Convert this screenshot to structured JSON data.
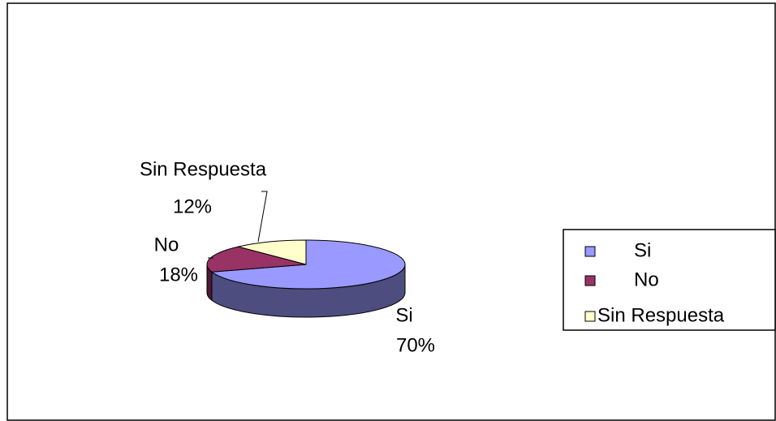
{
  "chart_data": {
    "type": "pie",
    "categories": [
      "Si",
      "No",
      "Sin Respuesta"
    ],
    "values": [
      70,
      18,
      12
    ],
    "value_labels": [
      "70%",
      "18%",
      "12%"
    ],
    "colors": [
      "#9999ff",
      "#993366",
      "#ffffcc"
    ],
    "legend": "right"
  }
}
